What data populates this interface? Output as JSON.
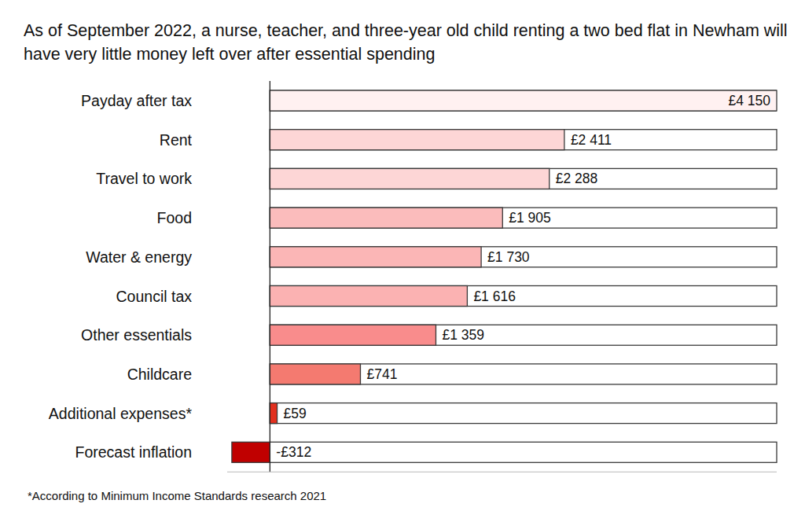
{
  "chart_data": {
    "type": "bar",
    "orientation": "horizontal",
    "title": "As of September 2022, a nurse, teacher, and three-year old child renting a two bed flat in Newham will have very little money left over after essential spending",
    "footnote": "*According to Minimum Income Standards research 2021",
    "categories": [
      "Payday after tax",
      "Rent",
      "Travel to work",
      "Food",
      "Water & energy",
      "Council tax",
      "Other essentials",
      "Childcare",
      "Additional expenses*",
      "Forecast inflation"
    ],
    "values": [
      4150,
      2411,
      2288,
      1905,
      1730,
      1616,
      1359,
      741,
      59,
      -312
    ],
    "value_labels": [
      "£4 150",
      "£2 411",
      "£2 288",
      "£1 905",
      "£1 730",
      "£1 616",
      "£1 359",
      "£741",
      "£59",
      "-£312"
    ],
    "colors": [
      "#fff1f1",
      "#fdd6d6",
      "#fdd6d6",
      "#fbbcbc",
      "#fbb6b6",
      "#fbb2b2",
      "#f98c8c",
      "#f47a70",
      "#e2301e",
      "#c00000"
    ],
    "xlim": [
      -350,
      4150
    ],
    "data_labels": true,
    "tick_labels": "y",
    "grid": false
  }
}
